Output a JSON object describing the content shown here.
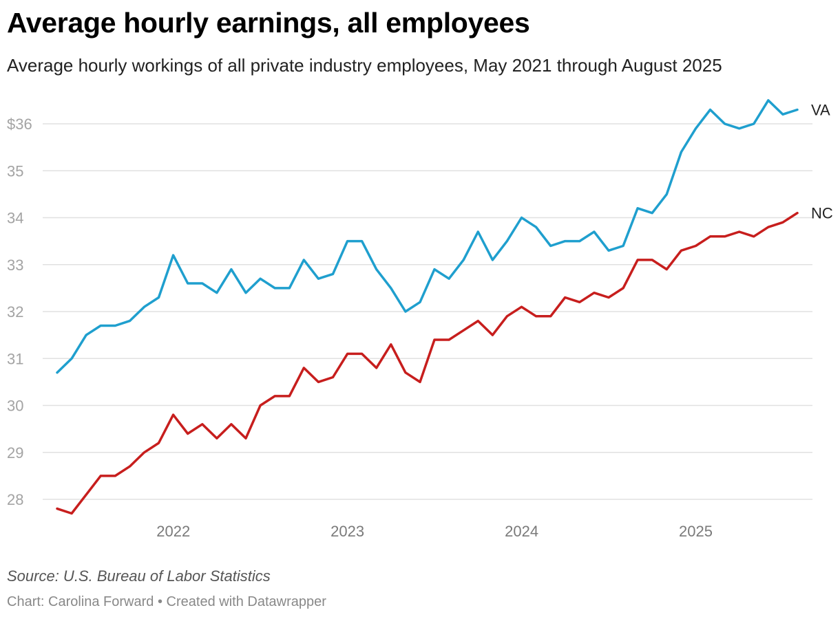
{
  "title": "Average hourly earnings, all employees",
  "subtitle": "Average hourly workings of all private industry employees, May 2021 through August 2025",
  "source": "Source: U.S. Bureau of Labor Statistics",
  "credit": {
    "byline": "Chart: Carolina Forward",
    "separator": " • ",
    "tool": "Created with Datawrapper"
  },
  "chart_data": {
    "type": "line",
    "title": "Average hourly earnings, all employees",
    "xlabel": "",
    "ylabel": "",
    "x_start": "2021-05",
    "x_end": "2025-08",
    "xlim": [
      2021.333,
      2025.583
    ],
    "ylim": [
      27.8,
      36.5
    ],
    "y_ticks": [
      28,
      29,
      30,
      31,
      32,
      33,
      34,
      35,
      36
    ],
    "y_tick_labels": [
      "28",
      "29",
      "30",
      "31",
      "32",
      "33",
      "34",
      "35",
      "$36"
    ],
    "x_ticks": [
      2022,
      2023,
      2024,
      2025
    ],
    "x_tick_labels": [
      "2022",
      "2023",
      "2024",
      "2025"
    ],
    "grid": true,
    "legend": "direct labels at line ends",
    "series": [
      {
        "name": "VA",
        "color": "#1f9fce",
        "values": [
          30.7,
          31.0,
          31.5,
          31.7,
          31.7,
          31.8,
          32.1,
          32.3,
          33.2,
          32.6,
          32.6,
          32.4,
          32.9,
          32.4,
          32.7,
          32.5,
          32.5,
          33.1,
          32.7,
          32.8,
          33.5,
          33.5,
          32.9,
          32.5,
          32.0,
          32.2,
          32.9,
          32.7,
          33.1,
          33.7,
          33.1,
          33.5,
          34.0,
          33.8,
          33.4,
          33.5,
          33.5,
          33.7,
          33.3,
          33.4,
          34.2,
          34.1,
          34.5,
          35.4,
          35.9,
          36.3,
          36.0,
          35.9,
          36.0,
          36.5,
          36.2,
          36.3
        ]
      },
      {
        "name": "NC",
        "color": "#c71e1d",
        "values": [
          27.8,
          27.7,
          28.1,
          28.5,
          28.5,
          28.7,
          29.0,
          29.2,
          29.8,
          29.4,
          29.6,
          29.3,
          29.6,
          29.3,
          30.0,
          30.2,
          30.2,
          30.8,
          30.5,
          30.6,
          31.1,
          31.1,
          30.8,
          31.3,
          30.7,
          30.5,
          31.4,
          31.4,
          31.6,
          31.8,
          31.5,
          31.9,
          32.1,
          31.9,
          31.9,
          32.3,
          32.2,
          32.4,
          32.3,
          32.5,
          33.1,
          33.1,
          32.9,
          33.3,
          33.4,
          33.6,
          33.6,
          33.7,
          33.6,
          33.8,
          33.9,
          34.1
        ]
      }
    ]
  }
}
